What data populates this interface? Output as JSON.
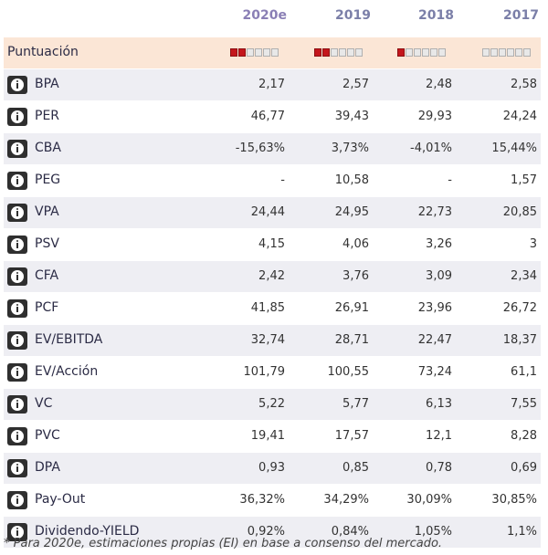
{
  "columns": [
    "2020e",
    "2019",
    "2018",
    "2017"
  ],
  "score": {
    "label": "Puntuación",
    "levels": [
      2,
      2,
      1,
      0
    ],
    "max": 6
  },
  "rows": [
    {
      "label": "BPA",
      "values": [
        "2,17",
        "2,57",
        "2,48",
        "2,58"
      ]
    },
    {
      "label": "PER",
      "values": [
        "46,77",
        "39,43",
        "29,93",
        "24,24"
      ]
    },
    {
      "label": "CBA",
      "values": [
        "-15,63%",
        "3,73%",
        "-4,01%",
        "15,44%"
      ]
    },
    {
      "label": "PEG",
      "values": [
        "-",
        "10,58",
        "-",
        "1,57"
      ]
    },
    {
      "label": "VPA",
      "values": [
        "24,44",
        "24,95",
        "22,73",
        "20,85"
      ]
    },
    {
      "label": "PSV",
      "values": [
        "4,15",
        "4,06",
        "3,26",
        "3"
      ]
    },
    {
      "label": "CFA",
      "values": [
        "2,42",
        "3,76",
        "3,09",
        "2,34"
      ]
    },
    {
      "label": "PCF",
      "values": [
        "41,85",
        "26,91",
        "23,96",
        "26,72"
      ]
    },
    {
      "label": "EV/EBITDA",
      "values": [
        "32,74",
        "28,71",
        "22,47",
        "18,37"
      ]
    },
    {
      "label": "EV/Acción",
      "values": [
        "101,79",
        "100,55",
        "73,24",
        "61,1"
      ]
    },
    {
      "label": "VC",
      "values": [
        "5,22",
        "5,77",
        "6,13",
        "7,55"
      ]
    },
    {
      "label": "PVC",
      "values": [
        "19,41",
        "17,57",
        "12,1",
        "8,28"
      ]
    },
    {
      "label": "DPA",
      "values": [
        "0,93",
        "0,85",
        "0,78",
        "0,69"
      ]
    },
    {
      "label": "Pay-Out",
      "values": [
        "36,32%",
        "34,29%",
        "30,09%",
        "30,85%"
      ]
    },
    {
      "label": "Dividendo-YIELD",
      "values": [
        "0,92%",
        "0,84%",
        "1,05%",
        "1,1%"
      ]
    }
  ],
  "footnote": "* Para 2020e, estimaciones propias (EI) en base a consenso del mercado.",
  "icon": "info-icon",
  "colors": {
    "header": "#7b7fa8",
    "score_bg": "#fbe6d6",
    "star_on": "#c4161c",
    "row_alt": "#eeeef3"
  }
}
